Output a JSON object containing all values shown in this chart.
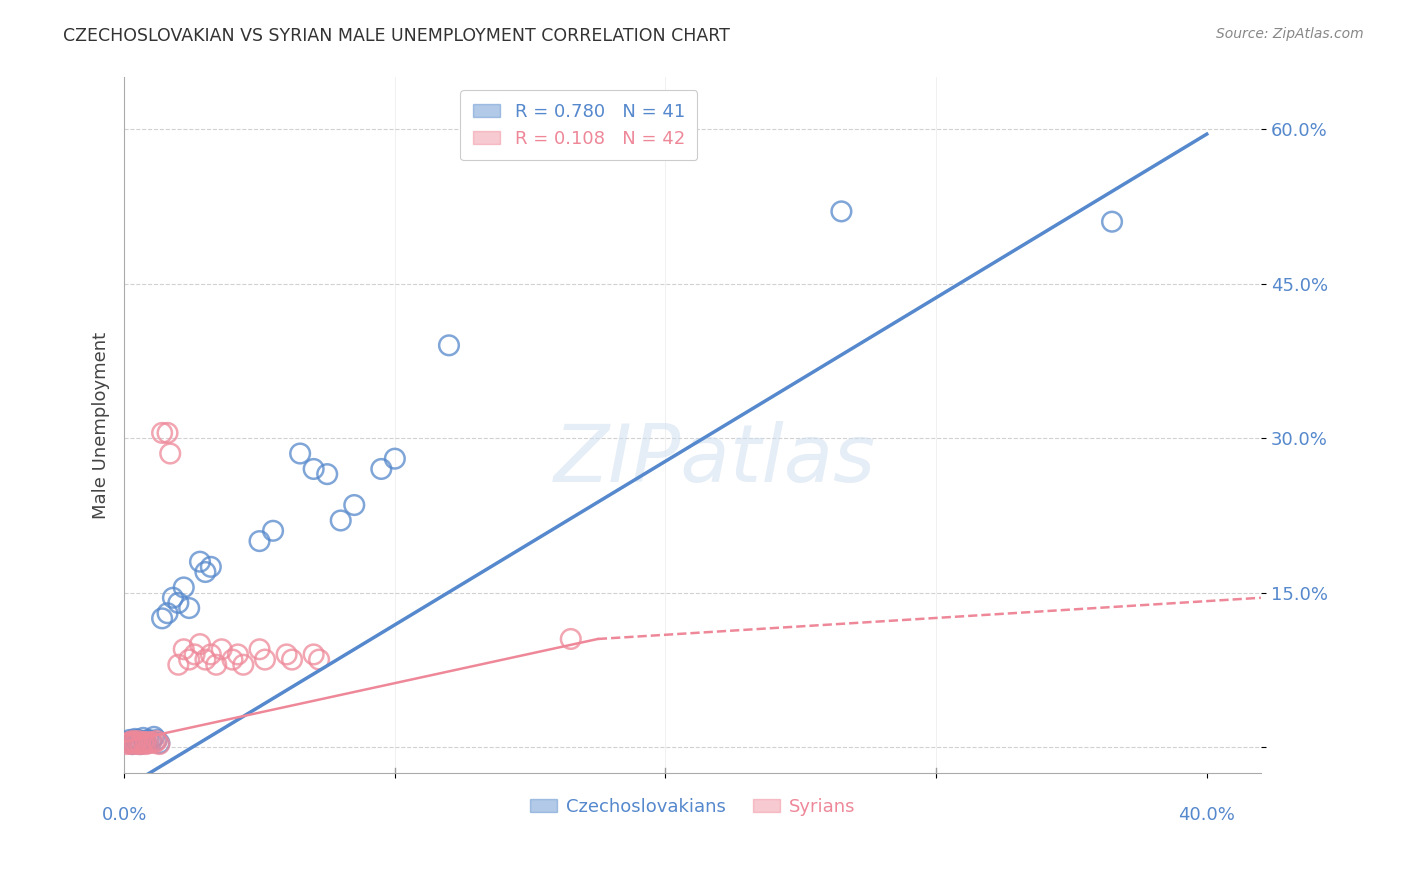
{
  "title": "CZECHOSLOVAKIAN VS SYRIAN MALE UNEMPLOYMENT CORRELATION CHART",
  "source": "Source: ZipAtlas.com",
  "ylabel": "Male Unemployment",
  "yticks": [
    0.0,
    0.15,
    0.3,
    0.45,
    0.6
  ],
  "ytick_labels": [
    "",
    "15.0%",
    "30.0%",
    "45.0%",
    "60.0%"
  ],
  "xtick_left_label": "0.0%",
  "xtick_right_label": "40.0%",
  "xlim": [
    0.0,
    0.42
  ],
  "ylim": [
    -0.025,
    0.65
  ],
  "czech_color": "#5588CC",
  "syrian_color": "#EE8899",
  "czech_R": 0.78,
  "czech_N": 41,
  "syrian_R": 0.108,
  "syrian_N": 42,
  "watermark": "ZIPatlas",
  "czech_line": [
    0.0,
    -0.04,
    0.4,
    0.595
  ],
  "syrian_line_solid": [
    0.0,
    0.005,
    0.175,
    0.105
  ],
  "syrian_line_dashed": [
    0.175,
    0.105,
    0.42,
    0.145
  ],
  "czech_scatter": [
    [
      0.001,
      0.005
    ],
    [
      0.002,
      0.004
    ],
    [
      0.002,
      0.007
    ],
    [
      0.003,
      0.003
    ],
    [
      0.003,
      0.006
    ],
    [
      0.004,
      0.005
    ],
    [
      0.004,
      0.008
    ],
    [
      0.005,
      0.004
    ],
    [
      0.005,
      0.007
    ],
    [
      0.006,
      0.005
    ],
    [
      0.006,
      0.003
    ],
    [
      0.007,
      0.006
    ],
    [
      0.007,
      0.009
    ],
    [
      0.008,
      0.005
    ],
    [
      0.008,
      0.004
    ],
    [
      0.009,
      0.007
    ],
    [
      0.01,
      0.006
    ],
    [
      0.011,
      0.01
    ],
    [
      0.012,
      0.007
    ],
    [
      0.013,
      0.004
    ],
    [
      0.014,
      0.125
    ],
    [
      0.016,
      0.13
    ],
    [
      0.018,
      0.145
    ],
    [
      0.02,
      0.14
    ],
    [
      0.022,
      0.155
    ],
    [
      0.024,
      0.135
    ],
    [
      0.028,
      0.18
    ],
    [
      0.03,
      0.17
    ],
    [
      0.032,
      0.175
    ],
    [
      0.05,
      0.2
    ],
    [
      0.055,
      0.21
    ],
    [
      0.065,
      0.285
    ],
    [
      0.07,
      0.27
    ],
    [
      0.075,
      0.265
    ],
    [
      0.08,
      0.22
    ],
    [
      0.085,
      0.235
    ],
    [
      0.095,
      0.27
    ],
    [
      0.1,
      0.28
    ],
    [
      0.12,
      0.39
    ],
    [
      0.265,
      0.52
    ],
    [
      0.365,
      0.51
    ]
  ],
  "syrian_scatter": [
    [
      0.001,
      0.003
    ],
    [
      0.002,
      0.005
    ],
    [
      0.002,
      0.004
    ],
    [
      0.003,
      0.003
    ],
    [
      0.003,
      0.006
    ],
    [
      0.004,
      0.004
    ],
    [
      0.004,
      0.005
    ],
    [
      0.005,
      0.003
    ],
    [
      0.005,
      0.006
    ],
    [
      0.006,
      0.004
    ],
    [
      0.006,
      0.003
    ],
    [
      0.007,
      0.005
    ],
    [
      0.007,
      0.004
    ],
    [
      0.008,
      0.005
    ],
    [
      0.008,
      0.003
    ],
    [
      0.009,
      0.004
    ],
    [
      0.01,
      0.005
    ],
    [
      0.011,
      0.004
    ],
    [
      0.012,
      0.006
    ],
    [
      0.013,
      0.003
    ],
    [
      0.014,
      0.305
    ],
    [
      0.016,
      0.305
    ],
    [
      0.017,
      0.285
    ],
    [
      0.02,
      0.08
    ],
    [
      0.022,
      0.095
    ],
    [
      0.024,
      0.085
    ],
    [
      0.026,
      0.09
    ],
    [
      0.028,
      0.1
    ],
    [
      0.03,
      0.085
    ],
    [
      0.032,
      0.09
    ],
    [
      0.034,
      0.08
    ],
    [
      0.036,
      0.095
    ],
    [
      0.04,
      0.085
    ],
    [
      0.042,
      0.09
    ],
    [
      0.044,
      0.08
    ],
    [
      0.05,
      0.095
    ],
    [
      0.052,
      0.085
    ],
    [
      0.06,
      0.09
    ],
    [
      0.062,
      0.085
    ],
    [
      0.07,
      0.09
    ],
    [
      0.072,
      0.085
    ],
    [
      0.165,
      0.105
    ]
  ]
}
